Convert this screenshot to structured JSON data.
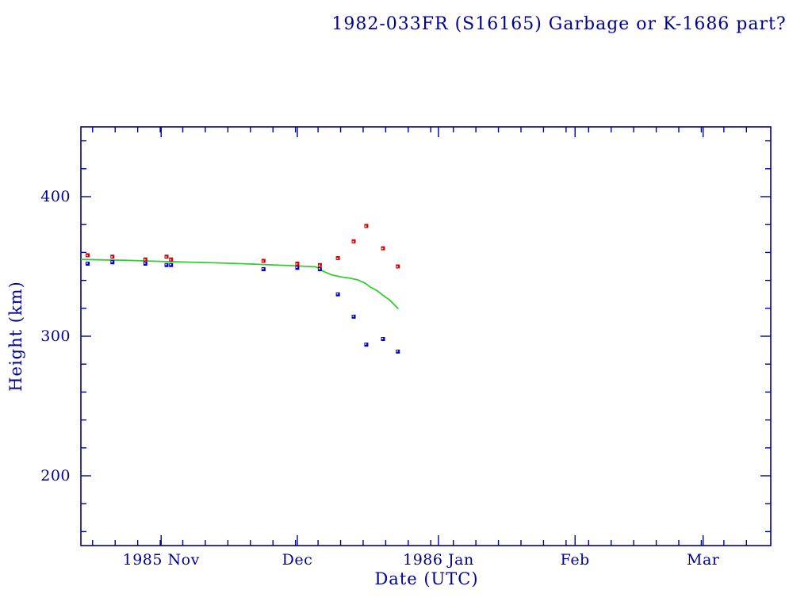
{
  "chart_data": {
    "type": "scatter",
    "title": "1982-033FR (S16165) Garbage or K-1686 part?",
    "xlabel": "Date (UTC)",
    "ylabel": "Height (km)",
    "legend": "none",
    "grid": false,
    "colors": {
      "axis": "#000090",
      "apogee": "#d40000",
      "perigee": "#0000c8",
      "model": "#33cc33",
      "marker_dot": "#ffffff",
      "background": "#ffffff"
    },
    "x_axis": {
      "start_date": "1985-10-14",
      "end_date": "1986-03-16",
      "span_days": 153,
      "major_ticks": [
        {
          "label": "1985 Nov",
          "day": 17.8
        },
        {
          "label": "Dec",
          "day": 48
        },
        {
          "label": "1986 Jan",
          "day": 79.3
        },
        {
          "label": "Feb",
          "day": 109.6
        },
        {
          "label": "Mar",
          "day": 138
        }
      ],
      "minor_ticks": {
        "first_day": 2.6,
        "step_days": 5,
        "count": 30
      }
    },
    "y_axis": {
      "min": 150,
      "max": 450,
      "major_ticks": [
        {
          "label": "400",
          "value": 400
        },
        {
          "label": "300",
          "value": 300
        },
        {
          "label": "200",
          "value": 200
        }
      ],
      "minor_tick_values": [
        160,
        180,
        220,
        240,
        260,
        280,
        320,
        340,
        360,
        380,
        420,
        440
      ]
    },
    "series": [
      {
        "name": "apogee-height",
        "color": "#d40000",
        "marker": "square-dot",
        "points": [
          {
            "date": "1985-10-15",
            "day": 1.5,
            "km": 358
          },
          {
            "date": "1985-10-21",
            "day": 7,
            "km": 357
          },
          {
            "date": "1985-10-28",
            "day": 14.3,
            "km": 355
          },
          {
            "date": "1985-11-02",
            "day": 19,
            "km": 357
          },
          {
            "date": "1985-11-03",
            "day": 20,
            "km": 355
          },
          {
            "date": "1985-11-23",
            "day": 40.5,
            "km": 354
          },
          {
            "date": "1985-12-01",
            "day": 48,
            "km": 352
          },
          {
            "date": "1985-12-06",
            "day": 53,
            "km": 351
          },
          {
            "date": "1985-12-10",
            "day": 57,
            "km": 356
          },
          {
            "date": "1985-12-13",
            "day": 60.5,
            "km": 368
          },
          {
            "date": "1985-12-16",
            "day": 63.3,
            "km": 379
          },
          {
            "date": "1985-12-20",
            "day": 67,
            "km": 363
          },
          {
            "date": "1985-12-23",
            "day": 70.3,
            "km": 350
          }
        ]
      },
      {
        "name": "perigee-height",
        "color": "#0000c8",
        "marker": "square-dot",
        "points": [
          {
            "date": "1985-10-15",
            "day": 1.5,
            "km": 352
          },
          {
            "date": "1985-10-21",
            "day": 7,
            "km": 353
          },
          {
            "date": "1985-10-28",
            "day": 14.3,
            "km": 352
          },
          {
            "date": "1985-11-02",
            "day": 19,
            "km": 351
          },
          {
            "date": "1985-11-03",
            "day": 20,
            "km": 351
          },
          {
            "date": "1985-11-23",
            "day": 40.5,
            "km": 348
          },
          {
            "date": "1985-12-01",
            "day": 48,
            "km": 349
          },
          {
            "date": "1985-12-06",
            "day": 53,
            "km": 348
          },
          {
            "date": "1985-12-10",
            "day": 57,
            "km": 330
          },
          {
            "date": "1985-12-13",
            "day": 60.5,
            "km": 314
          },
          {
            "date": "1985-12-16",
            "day": 63.3,
            "km": 294
          },
          {
            "date": "1985-12-20",
            "day": 67,
            "km": 298
          },
          {
            "date": "1985-12-23",
            "day": 70.3,
            "km": 289
          }
        ]
      }
    ],
    "model_line": {
      "name": "decay-model",
      "color": "#33cc33",
      "points": [
        [
          0,
          355
        ],
        [
          10,
          354.4
        ],
        [
          19,
          353.5
        ],
        [
          31,
          352.5
        ],
        [
          38,
          351.7
        ],
        [
          45,
          350.8
        ],
        [
          52,
          349.8
        ],
        [
          52.8,
          348.7
        ],
        [
          53.6,
          346.8
        ],
        [
          54.5,
          345.5
        ],
        [
          55.7,
          343.9
        ],
        [
          57.5,
          342.6
        ],
        [
          59.6,
          341.6
        ],
        [
          61.3,
          340.5
        ],
        [
          63.1,
          337.9
        ],
        [
          64.1,
          335.4
        ],
        [
          65.7,
          332.6
        ],
        [
          67.1,
          329.1
        ],
        [
          68.6,
          325.6
        ],
        [
          70.4,
          319.6
        ]
      ]
    }
  }
}
